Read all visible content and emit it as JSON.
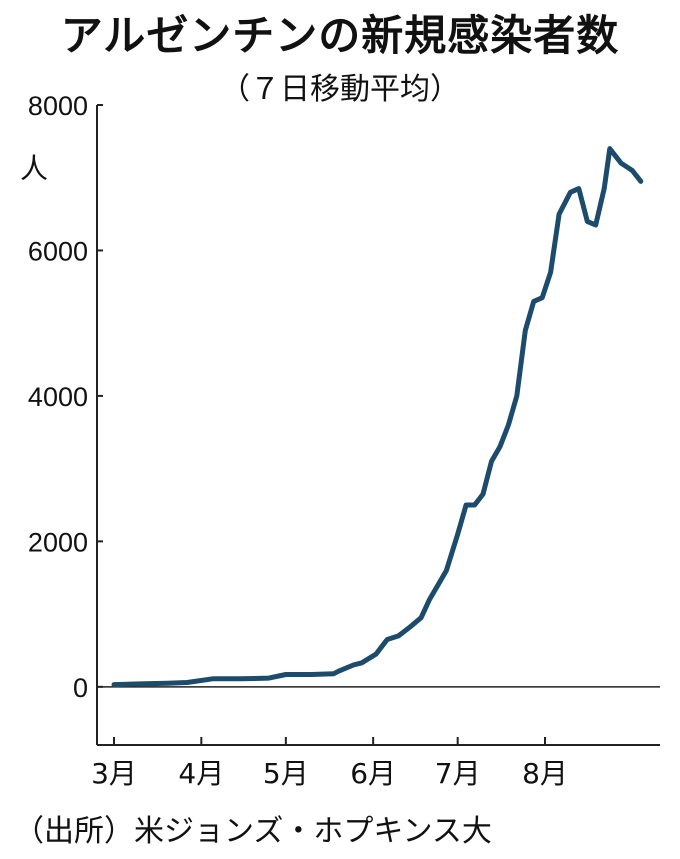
{
  "header": {
    "title": "アルゼンチンの新規感染者数",
    "subtitle": "（７日移動平均）"
  },
  "footer": {
    "source": "（出所）米ジョンズ・ホプキンス大"
  },
  "colors": {
    "line": "#1c4b6b",
    "axis": "#222222"
  },
  "chart_data": {
    "type": "line",
    "title": "アルゼンチンの新規感染者数",
    "subtitle": "（７日移動平均）",
    "ylabel": "人",
    "xlabel": "",
    "ylim": [
      -800,
      8000
    ],
    "yticks": [
      0,
      2000,
      4000,
      6000,
      8000
    ],
    "yticklabels": [
      "0",
      "2000",
      "4000",
      "6000",
      "8000"
    ],
    "xlim": [
      "2020-03-01",
      "2020-09-06"
    ],
    "xticks": [
      "2020-03-01",
      "2020-04-01",
      "2020-05-01",
      "2020-06-01",
      "2020-07-01",
      "2020-08-01"
    ],
    "xticklabels": [
      "3月",
      "4月",
      "5月",
      "6月",
      "7月",
      "8月"
    ],
    "grid": false,
    "series": [
      {
        "name": "",
        "x": [
          "2020-03-01",
          "2020-03-10",
          "2020-03-20",
          "2020-03-27",
          "2020-04-05",
          "2020-04-15",
          "2020-04-25",
          "2020-05-01",
          "2020-05-10",
          "2020-05-18",
          "2020-05-20",
          "2020-05-25",
          "2020-05-28",
          "2020-06-02",
          "2020-06-06",
          "2020-06-10",
          "2020-06-14",
          "2020-06-18",
          "2020-06-21",
          "2020-06-24",
          "2020-06-27",
          "2020-07-01",
          "2020-07-04",
          "2020-07-07",
          "2020-07-10",
          "2020-07-13",
          "2020-07-16",
          "2020-07-19",
          "2020-07-22",
          "2020-07-25",
          "2020-07-28",
          "2020-07-31",
          "2020-08-03",
          "2020-08-06",
          "2020-08-10",
          "2020-08-13",
          "2020-08-16",
          "2020-08-19",
          "2020-08-22",
          "2020-08-24",
          "2020-08-26",
          "2020-08-28",
          "2020-08-30",
          "2020-09-01",
          "2020-09-02",
          "2020-09-03",
          "2020-09-04"
        ],
        "y": [
          30,
          40,
          50,
          60,
          110,
          110,
          120,
          170,
          170,
          180,
          220,
          300,
          330,
          450,
          650,
          700,
          820,
          950,
          1200,
          1400,
          1600,
          2100,
          2500,
          2500,
          2650,
          3100,
          3300,
          3600,
          4000,
          4900,
          5300,
          5350,
          5700,
          6500,
          6800,
          6850,
          6400,
          6350,
          6850,
          7400,
          7300,
          7200,
          7150,
          7100,
          7050,
          7000,
          6950
        ]
      }
    ]
  }
}
